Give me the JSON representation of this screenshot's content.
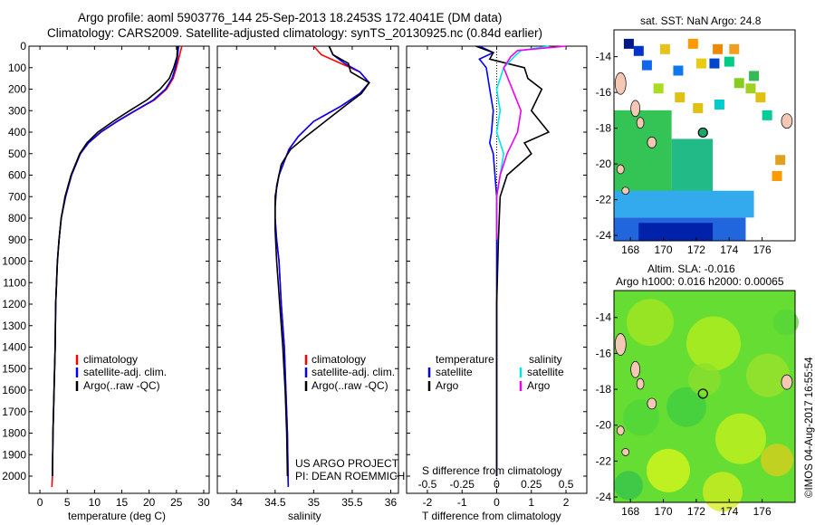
{
  "header": {
    "line1": "Argo profile: aoml 5903776_144 25-Sep-2013 18.2453S 172.4041E (DM data)",
    "line2": "Climatology: CARS2009. Satellite-adjusted climatology: synTS_20130925.nc (0.84d earlier)"
  },
  "colors": {
    "clim": "#ff0000",
    "sat": "#0000ff",
    "argo": "#000000",
    "sal_sat": "#00e5e5",
    "sal_argo": "#ee00ee"
  },
  "chart_data": [
    {
      "type": "line",
      "id": "temperature",
      "xlabel": "temperature (deg C)",
      "ylabel": "",
      "xlim": [
        -2,
        31
      ],
      "ylim": [
        2080,
        0
      ],
      "xticks": [
        0,
        5,
        10,
        15,
        20,
        25,
        30
      ],
      "yticks": [
        0,
        100,
        200,
        300,
        400,
        500,
        600,
        700,
        800,
        900,
        1000,
        1100,
        1200,
        1300,
        1400,
        1500,
        1600,
        1700,
        1800,
        1900,
        2000
      ],
      "series": [
        {
          "name": "climatology",
          "color": "#ff0000",
          "x": [
            26.0,
            25.5,
            25.0,
            24.4,
            23.2,
            21.0,
            17.5,
            14.2,
            11.2,
            8.9,
            7.4,
            5.8,
            4.7,
            3.9,
            3.5,
            3.2,
            2.9,
            2.8,
            2.6,
            2.4,
            2.3,
            2.2
          ],
          "y": [
            0,
            50,
            100,
            150,
            200,
            250,
            300,
            350,
            400,
            450,
            500,
            600,
            700,
            800,
            900,
            1000,
            1200,
            1400,
            1600,
            1800,
            2000,
            2050
          ]
        },
        {
          "name": "satellite-adj. clim.",
          "color": "#0000ff",
          "x": [
            25.4,
            25.2,
            24.8,
            24.2,
            23.0,
            20.8,
            17.4,
            14.1,
            11.1,
            8.9,
            7.4,
            5.8,
            4.7,
            3.9,
            3.5,
            3.2,
            2.9,
            2.8,
            2.6,
            2.4,
            2.3
          ],
          "y": [
            0,
            50,
            100,
            150,
            200,
            250,
            300,
            350,
            400,
            450,
            500,
            600,
            700,
            800,
            900,
            1000,
            1200,
            1400,
            1600,
            1800,
            2000
          ]
        },
        {
          "name": "Argo(..raw -QC)",
          "color": "#000000",
          "x": [
            25.2,
            25.1,
            24.5,
            23.7,
            22.0,
            19.6,
            16.4,
            13.4,
            10.6,
            8.6,
            7.3,
            5.7,
            4.6,
            3.9,
            3.5,
            3.2,
            2.9,
            2.8,
            2.6,
            2.4,
            2.3
          ],
          "y": [
            0,
            50,
            100,
            150,
            200,
            250,
            300,
            350,
            400,
            450,
            500,
            600,
            700,
            800,
            900,
            1000,
            1200,
            1400,
            1600,
            1800,
            2000
          ]
        }
      ],
      "legend": [
        "climatology",
        "satellite-adj. clim.",
        "Argo(..raw -QC)"
      ]
    },
    {
      "type": "line",
      "id": "salinity",
      "xlabel": "salinity",
      "xlim": [
        33.75,
        36.1
      ],
      "ylim": [
        2080,
        0
      ],
      "xticks": [
        34,
        34.5,
        35,
        35.5,
        36
      ],
      "series": [
        {
          "name": "climatology",
          "color": "#ff0000",
          "x": [
            35.0,
            35.1,
            35.35,
            35.6,
            35.72,
            35.6,
            35.35,
            35.0,
            34.8,
            34.68,
            34.55,
            34.5,
            34.5,
            34.52,
            34.55,
            34.58,
            34.62,
            34.64,
            34.66,
            34.67
          ],
          "y": [
            0,
            40,
            80,
            120,
            170,
            220,
            280,
            350,
            420,
            480,
            600,
            700,
            800,
            900,
            1000,
            1200,
            1400,
            1600,
            1800,
            2050
          ]
        },
        {
          "name": "satellite-adj. clim.",
          "color": "#0000ff",
          "x": [
            35.2,
            35.25,
            35.4,
            35.6,
            35.72,
            35.6,
            35.35,
            35.0,
            34.8,
            34.68,
            34.55,
            34.5,
            34.5,
            34.52,
            34.55,
            34.58,
            34.62,
            34.64,
            34.66,
            34.67
          ],
          "y": [
            0,
            40,
            80,
            120,
            170,
            220,
            280,
            350,
            420,
            480,
            600,
            700,
            800,
            900,
            1000,
            1200,
            1400,
            1600,
            1800,
            2050
          ]
        },
        {
          "name": "Argo(..raw -QC)",
          "color": "#000000",
          "x": [
            35.2,
            35.25,
            35.45,
            35.48,
            35.72,
            35.62,
            35.4,
            35.15,
            34.9,
            34.7,
            34.58,
            34.52,
            34.5,
            34.5,
            34.52,
            34.56,
            34.6,
            34.63,
            34.65,
            34.66
          ],
          "y": [
            0,
            40,
            80,
            120,
            170,
            220,
            280,
            350,
            420,
            480,
            550,
            650,
            750,
            850,
            1000,
            1200,
            1400,
            1600,
            1800,
            2000
          ]
        }
      ],
      "legend": [
        "climatology",
        "satellite-adj. clim.",
        "Argo(..raw -QC)"
      ]
    },
    {
      "type": "line",
      "id": "differences",
      "xlabel": "T difference from climatology",
      "xlabel_top": "S difference from climatology",
      "xlim": [
        -2.6,
        2.6
      ],
      "ylim": [
        2080,
        0
      ],
      "xticks": [
        -2,
        -1,
        0,
        1,
        2
      ],
      "xticks_top": [
        -0.5,
        -0.25,
        0,
        0.25,
        0.5
      ],
      "series": [
        {
          "name": "temperature satellite",
          "color": "#0000ff",
          "x": [
            -0.5,
            -0.1,
            -0.5,
            -0.3,
            -0.2,
            -0.1,
            -0.15,
            -0.2,
            -0.1,
            -0.05,
            0,
            0,
            0,
            0,
            0
          ],
          "y": [
            0,
            30,
            60,
            100,
            200,
            300,
            400,
            450,
            500,
            600,
            700,
            900,
            1200,
            1600,
            2000
          ]
        },
        {
          "name": "temperature Argo",
          "color": "#000000",
          "x": [
            -0.6,
            -0.1,
            -0.2,
            0.8,
            0.9,
            1.3,
            1.0,
            1.5,
            0.8,
            1.0,
            0.3,
            0.1,
            0.05,
            0,
            0,
            0
          ],
          "y": [
            0,
            30,
            60,
            100,
            150,
            200,
            300,
            400,
            450,
            500,
            600,
            700,
            900,
            1200,
            1600,
            2000
          ]
        },
        {
          "name": "salinity satellite",
          "color": "#00e5e5",
          "x": [
            1.5,
            0.7,
            0.5,
            0.2,
            0.0,
            0.1,
            0.0,
            0.2,
            0.1,
            0.0,
            0.0
          ],
          "y": [
            0,
            20,
            50,
            100,
            200,
            300,
            400,
            500,
            600,
            700,
            900
          ]
        },
        {
          "name": "salinity Argo",
          "color": "#ee00ee",
          "x": [
            2.0,
            0.6,
            0.4,
            0.2,
            0.7,
            0.6,
            0.3,
            0.1,
            0.0,
            0.0
          ],
          "y": [
            0,
            20,
            50,
            100,
            300,
            400,
            500,
            600,
            700,
            900
          ]
        }
      ],
      "legend": {
        "temperature_title": "temperature",
        "salinity_title": "salinity",
        "satellite": "satellite",
        "argo": "Argo"
      }
    },
    {
      "type": "heatmap",
      "id": "sst_map",
      "title": "sat. SST: NaN Argo: 24.8",
      "xticks": [
        168,
        170,
        172,
        174,
        176
      ],
      "yticks": [
        -14,
        -16,
        -18,
        -20,
        -22,
        -24
      ],
      "xlim": [
        167,
        178
      ],
      "ylim": [
        -24.3,
        -12.5
      ],
      "float_position": {
        "lon": 172.4041,
        "lat": -18.2453
      }
    },
    {
      "type": "heatmap",
      "id": "sla_map",
      "title": "Altim. SLA: -0.016",
      "subtitle": "Argo h1000: 0.016 h2000: 0.00065",
      "xticks": [
        168,
        170,
        172,
        174,
        176
      ],
      "yticks": [
        -14,
        -16,
        -18,
        -20,
        -22,
        -24
      ],
      "xlim": [
        167,
        178
      ],
      "ylim": [
        -24.3,
        -12.5
      ],
      "float_position": {
        "lon": 172.4041,
        "lat": -18.2453
      }
    }
  ],
  "annotations": {
    "project": "US ARGO PROJECT",
    "pi": "PI: DEAN ROEMMICH",
    "credit": "©IMOS 04-Aug-2017 16:55:54"
  }
}
